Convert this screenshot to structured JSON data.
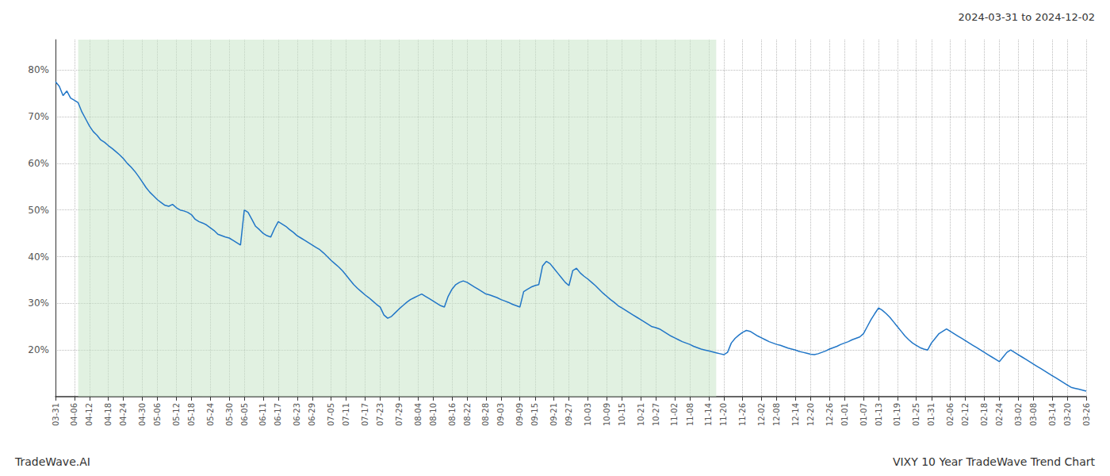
{
  "chart_data": {
    "type": "line",
    "title": "VIXY 10 Year TradeWave Trend Chart",
    "annotations": [
      "2024-03-31 to 2024-12-02",
      "TradeWave.AI"
    ],
    "color": "#2176c7",
    "grid": true,
    "shaded_region": {
      "start": 6,
      "end": 175,
      "color": "#c8e6c8"
    },
    "ylim": [
      0.1,
      0.865
    ],
    "yticks": [
      {
        "value": 0.2,
        "label": "20%"
      },
      {
        "value": 0.3,
        "label": "30%"
      },
      {
        "value": 0.4,
        "label": "40%"
      },
      {
        "value": 0.5,
        "label": "50%"
      },
      {
        "value": 0.6,
        "label": "60%"
      },
      {
        "value": 0.7,
        "label": "70%"
      },
      {
        "value": 0.8,
        "label": "80%"
      }
    ],
    "categories": [
      "03-31",
      null,
      null,
      null,
      null,
      "04-06",
      null,
      null,
      null,
      "04-12",
      null,
      null,
      null,
      null,
      "04-18",
      null,
      null,
      null,
      "04-24",
      null,
      null,
      null,
      null,
      "04-30",
      null,
      null,
      null,
      "05-06",
      null,
      null,
      null,
      null,
      "05-12",
      null,
      null,
      null,
      "05-18",
      null,
      null,
      null,
      null,
      "05-24",
      null,
      null,
      null,
      null,
      "05-30",
      null,
      null,
      null,
      "06-05",
      null,
      null,
      null,
      null,
      "06-11",
      null,
      null,
      null,
      "06-17",
      null,
      null,
      null,
      null,
      "06-23",
      null,
      null,
      null,
      "06-29",
      null,
      null,
      null,
      null,
      "07-05",
      null,
      null,
      null,
      "07-11",
      null,
      null,
      null,
      null,
      "07-17",
      null,
      null,
      null,
      "07-23",
      null,
      null,
      null,
      null,
      "07-29",
      null,
      null,
      null,
      null,
      "08-04",
      null,
      null,
      null,
      "08-10",
      null,
      null,
      null,
      null,
      "08-16",
      null,
      null,
      null,
      "08-22",
      null,
      null,
      null,
      null,
      "08-28",
      null,
      null,
      null,
      "09-03",
      null,
      null,
      null,
      null,
      "09-09",
      null,
      null,
      null,
      "09-15",
      null,
      null,
      null,
      null,
      "09-21",
      null,
      null,
      null,
      "09-27",
      null,
      null,
      null,
      null,
      "10-03",
      null,
      null,
      null,
      null,
      "10-09",
      null,
      null,
      null,
      "10-15",
      null,
      null,
      null,
      null,
      "10-21",
      null,
      null,
      null,
      "10-27",
      null,
      null,
      null,
      null,
      "11-02",
      null,
      null,
      null,
      "11-08",
      null,
      null,
      null,
      null,
      "11-14",
      null,
      null,
      null,
      "11-20",
      null,
      null,
      null,
      null,
      "11-26",
      null,
      null,
      null,
      null,
      "12-02",
      null,
      null,
      null,
      "12-08",
      null,
      null,
      null,
      null,
      "12-14",
      null,
      null,
      null,
      "12-20",
      null,
      null,
      null,
      null,
      "12-26",
      null,
      null,
      null,
      "01-01",
      null,
      null,
      null,
      null,
      "01-07",
      null,
      null,
      null,
      "01-13",
      null,
      null,
      null,
      null,
      "01-19",
      null,
      null,
      null,
      null,
      "01-25",
      null,
      null,
      null,
      "01-31",
      null,
      null,
      null,
      null,
      "02-06",
      null,
      null,
      null,
      "02-12",
      null,
      null,
      null,
      null,
      "02-18",
      null,
      null,
      null,
      "02-24",
      null,
      null,
      null,
      null,
      "03-02",
      null,
      null,
      null,
      "03-08",
      null,
      null,
      null,
      null,
      "03-14",
      null,
      null,
      null,
      "03-20",
      null,
      null,
      null,
      null,
      "03-26"
    ],
    "values": [
      0.775,
      0.765,
      0.745,
      0.755,
      0.74,
      0.735,
      0.73,
      0.71,
      0.695,
      0.68,
      0.668,
      0.66,
      0.65,
      0.645,
      0.638,
      0.632,
      0.625,
      0.618,
      0.61,
      0.6,
      0.592,
      0.583,
      0.572,
      0.56,
      0.548,
      0.538,
      0.53,
      0.522,
      0.516,
      0.51,
      0.508,
      0.512,
      0.505,
      0.5,
      0.498,
      0.495,
      0.49,
      0.48,
      0.475,
      0.472,
      0.468,
      0.462,
      0.456,
      0.448,
      0.445,
      0.442,
      0.44,
      0.435,
      0.43,
      0.425,
      0.5,
      0.495,
      0.48,
      0.465,
      0.458,
      0.45,
      0.445,
      0.442,
      0.46,
      0.475,
      0.47,
      0.465,
      0.458,
      0.452,
      0.445,
      0.44,
      0.435,
      0.43,
      0.425,
      0.42,
      0.415,
      0.408,
      0.4,
      0.392,
      0.385,
      0.378,
      0.37,
      0.36,
      0.35,
      0.34,
      0.332,
      0.325,
      0.318,
      0.312,
      0.305,
      0.298,
      0.292,
      0.275,
      0.268,
      0.272,
      0.28,
      0.288,
      0.295,
      0.302,
      0.308,
      0.312,
      0.316,
      0.32,
      0.315,
      0.31,
      0.305,
      0.3,
      0.295,
      0.292,
      0.315,
      0.33,
      0.34,
      0.345,
      0.348,
      0.345,
      0.34,
      0.335,
      0.33,
      0.325,
      0.32,
      0.318,
      0.315,
      0.312,
      0.308,
      0.305,
      0.302,
      0.298,
      0.295,
      0.292,
      0.325,
      0.33,
      0.335,
      0.338,
      0.34,
      0.38,
      0.39,
      0.385,
      0.375,
      0.365,
      0.355,
      0.345,
      0.338,
      0.37,
      0.375,
      0.365,
      0.358,
      0.352,
      0.345,
      0.338,
      0.33,
      0.322,
      0.315,
      0.308,
      0.302,
      0.295,
      0.29,
      0.285,
      0.28,
      0.275,
      0.27,
      0.265,
      0.26,
      0.255,
      0.25,
      0.248,
      0.245,
      0.24,
      0.235,
      0.23,
      0.226,
      0.222,
      0.218,
      0.215,
      0.212,
      0.208,
      0.205,
      0.202,
      0.2,
      0.198,
      0.196,
      0.194,
      0.192,
      0.19,
      0.195,
      0.215,
      0.225,
      0.232,
      0.238,
      0.242,
      0.24,
      0.235,
      0.23,
      0.226,
      0.222,
      0.218,
      0.215,
      0.212,
      0.21,
      0.207,
      0.204,
      0.202,
      0.2,
      0.197,
      0.195,
      0.193,
      0.191,
      0.19,
      0.192,
      0.195,
      0.198,
      0.202,
      0.205,
      0.208,
      0.212,
      0.215,
      0.218,
      0.222,
      0.225,
      0.228,
      0.235,
      0.25,
      0.265,
      0.278,
      0.29,
      0.285,
      0.278,
      0.27,
      0.26,
      0.25,
      0.24,
      0.23,
      0.222,
      0.215,
      0.21,
      0.205,
      0.202,
      0.2,
      0.215,
      0.225,
      0.235,
      0.24,
      0.245,
      0.24,
      0.235,
      0.23,
      0.225,
      0.22,
      0.215,
      0.21,
      0.205,
      0.2,
      0.195,
      0.19,
      0.185,
      0.18,
      0.175,
      0.185,
      0.195,
      0.2,
      0.195,
      0.19,
      0.185,
      0.18,
      0.175,
      0.17,
      0.165,
      0.16,
      0.155,
      0.15,
      0.145,
      0.14,
      0.135,
      0.13,
      0.125,
      0.12,
      0.118,
      0.116,
      0.114,
      0.112
    ]
  }
}
